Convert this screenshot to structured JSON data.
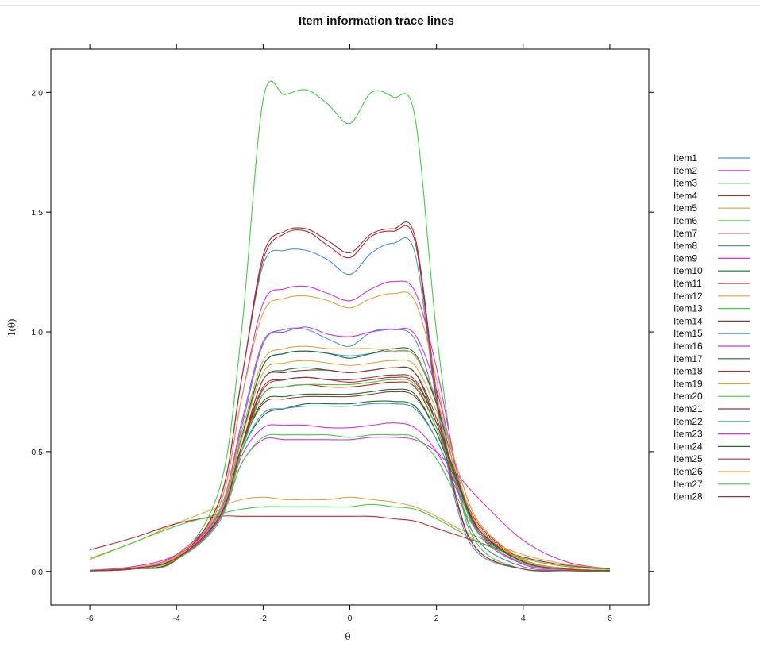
{
  "chart_data": {
    "type": "line",
    "title": "Item information trace lines",
    "xlabel": "θ",
    "ylabel": "I(θ)",
    "xlim": [
      -6.9,
      6.9
    ],
    "ylim": [
      -0.14,
      2.18
    ],
    "x_ticks": [
      -6,
      -4,
      -2,
      0,
      2,
      4,
      6
    ],
    "y_ticks": [
      0.0,
      0.5,
      1.0,
      1.5,
      2.0
    ],
    "x_tick_labels": [
      "-6",
      "-4",
      "-2",
      "0",
      "2",
      "4",
      "6"
    ],
    "y_tick_labels": [
      "0.0",
      "0.5",
      "1.0",
      "1.5",
      "2.0"
    ],
    "grid": false,
    "legend_position": "right",
    "x": [
      -6,
      -5,
      -4,
      -3,
      -2.5,
      -2,
      -1.5,
      -1,
      -0.5,
      0,
      0.5,
      1,
      1.5,
      2,
      2.5,
      3,
      4,
      5,
      6
    ],
    "series": [
      {
        "name": "Item1",
        "color": "#4a90d9",
        "values": [
          0.003,
          0.015,
          0.06,
          0.25,
          0.55,
          0.86,
          0.91,
          0.92,
          0.91,
          0.9,
          0.91,
          0.92,
          0.9,
          0.7,
          0.42,
          0.2,
          0.05,
          0.012,
          0.003
        ]
      },
      {
        "name": "Item2",
        "color": "#d633d6",
        "values": [
          0.005,
          0.02,
          0.07,
          0.22,
          0.45,
          0.55,
          0.55,
          0.55,
          0.55,
          0.55,
          0.56,
          0.56,
          0.55,
          0.5,
          0.4,
          0.3,
          0.13,
          0.04,
          0.01
        ]
      },
      {
        "name": "Item3",
        "color": "#1f6f2f",
        "values": [
          0.003,
          0.012,
          0.05,
          0.22,
          0.52,
          0.8,
          0.84,
          0.85,
          0.84,
          0.83,
          0.84,
          0.85,
          0.83,
          0.62,
          0.36,
          0.16,
          0.04,
          0.01,
          0.003
        ]
      },
      {
        "name": "Item4",
        "color": "#c0282c",
        "values": [
          0.004,
          0.015,
          0.06,
          0.24,
          0.52,
          0.76,
          0.8,
          0.81,
          0.8,
          0.79,
          0.8,
          0.81,
          0.79,
          0.62,
          0.38,
          0.19,
          0.05,
          0.012,
          0.003
        ]
      },
      {
        "name": "Item5",
        "color": "#e6a23c",
        "values": [
          0.055,
          0.12,
          0.2,
          0.27,
          0.3,
          0.31,
          0.3,
          0.3,
          0.3,
          0.31,
          0.3,
          0.29,
          0.27,
          0.23,
          0.18,
          0.14,
          0.07,
          0.03,
          0.01
        ]
      },
      {
        "name": "Item6",
        "color": "#3fcf3f",
        "values": [
          0.002,
          0.01,
          0.05,
          0.35,
          1.0,
          1.97,
          1.99,
          2.01,
          1.95,
          1.87,
          2.0,
          1.98,
          1.9,
          1.0,
          0.35,
          0.1,
          0.01,
          0.003,
          0.001
        ]
      },
      {
        "name": "Item7",
        "color": "#8b3a3a",
        "values": [
          0.002,
          0.01,
          0.05,
          0.3,
          0.8,
          1.32,
          1.42,
          1.43,
          1.38,
          1.33,
          1.41,
          1.43,
          1.4,
          0.75,
          0.28,
          0.08,
          0.01,
          0.003,
          0.001
        ]
      },
      {
        "name": "Item8",
        "color": "#4a90d9",
        "values": [
          0.002,
          0.01,
          0.05,
          0.3,
          0.8,
          1.28,
          1.34,
          1.34,
          1.3,
          1.24,
          1.33,
          1.37,
          1.33,
          0.7,
          0.25,
          0.07,
          0.01,
          0.003,
          0.001
        ]
      },
      {
        "name": "Item9",
        "color": "#d633d6",
        "values": [
          0.003,
          0.015,
          0.07,
          0.28,
          0.72,
          1.12,
          1.18,
          1.19,
          1.16,
          1.13,
          1.18,
          1.21,
          1.17,
          0.85,
          0.4,
          0.15,
          0.03,
          0.01,
          0.003
        ]
      },
      {
        "name": "Item10",
        "color": "#1f6f2f",
        "values": [
          0.003,
          0.012,
          0.05,
          0.22,
          0.5,
          0.65,
          0.68,
          0.7,
          0.7,
          0.7,
          0.71,
          0.71,
          0.69,
          0.55,
          0.34,
          0.17,
          0.04,
          0.012,
          0.003
        ]
      },
      {
        "name": "Item11",
        "color": "#c0282c",
        "values": [
          0.09,
          0.14,
          0.2,
          0.23,
          0.23,
          0.23,
          0.23,
          0.23,
          0.23,
          0.23,
          0.23,
          0.22,
          0.21,
          0.18,
          0.15,
          0.12,
          0.06,
          0.025,
          0.01
        ]
      },
      {
        "name": "Item12",
        "color": "#e6a23c",
        "values": [
          0.002,
          0.012,
          0.06,
          0.28,
          0.72,
          1.08,
          1.14,
          1.15,
          1.13,
          1.1,
          1.14,
          1.16,
          1.13,
          0.8,
          0.35,
          0.12,
          0.02,
          0.005,
          0.002
        ]
      },
      {
        "name": "Item13",
        "color": "#3fcf3f",
        "values": [
          0.003,
          0.015,
          0.06,
          0.23,
          0.45,
          0.56,
          0.57,
          0.57,
          0.57,
          0.56,
          0.57,
          0.57,
          0.56,
          0.47,
          0.3,
          0.16,
          0.04,
          0.01,
          0.003
        ]
      },
      {
        "name": "Item14",
        "color": "#8b3a3a",
        "values": [
          0.003,
          0.015,
          0.06,
          0.24,
          0.52,
          0.7,
          0.72,
          0.73,
          0.73,
          0.73,
          0.74,
          0.75,
          0.73,
          0.58,
          0.36,
          0.18,
          0.045,
          0.012,
          0.003
        ]
      },
      {
        "name": "Item15",
        "color": "#4a90d9",
        "values": [
          0.003,
          0.012,
          0.055,
          0.25,
          0.6,
          0.95,
          1.01,
          1.01,
          0.97,
          0.94,
          1.0,
          1.01,
          0.97,
          0.7,
          0.33,
          0.12,
          0.02,
          0.005,
          0.002
        ]
      },
      {
        "name": "Item16",
        "color": "#d633d6",
        "values": [
          0.003,
          0.014,
          0.06,
          0.26,
          0.62,
          0.96,
          1.0,
          1.02,
          0.99,
          0.98,
          1.0,
          1.01,
          0.99,
          0.76,
          0.4,
          0.16,
          0.03,
          0.008,
          0.002
        ]
      },
      {
        "name": "Item17",
        "color": "#1f6f2f",
        "values": [
          0.003,
          0.013,
          0.055,
          0.24,
          0.56,
          0.86,
          0.91,
          0.92,
          0.91,
          0.89,
          0.91,
          0.93,
          0.91,
          0.7,
          0.38,
          0.17,
          0.04,
          0.01,
          0.003
        ]
      },
      {
        "name": "Item18",
        "color": "#c0282c",
        "values": [
          0.003,
          0.014,
          0.06,
          0.23,
          0.52,
          0.74,
          0.77,
          0.78,
          0.77,
          0.77,
          0.78,
          0.79,
          0.77,
          0.6,
          0.36,
          0.18,
          0.045,
          0.012,
          0.003
        ]
      },
      {
        "name": "Item19",
        "color": "#e6a23c",
        "values": [
          0.004,
          0.016,
          0.065,
          0.26,
          0.58,
          0.88,
          0.93,
          0.94,
          0.93,
          0.93,
          0.93,
          0.92,
          0.9,
          0.72,
          0.42,
          0.2,
          0.05,
          0.013,
          0.003
        ]
      },
      {
        "name": "Item20",
        "color": "#3fcf3f",
        "values": [
          0.05,
          0.12,
          0.19,
          0.24,
          0.26,
          0.27,
          0.27,
          0.27,
          0.27,
          0.27,
          0.28,
          0.27,
          0.26,
          0.22,
          0.17,
          0.12,
          0.055,
          0.02,
          0.008
        ]
      },
      {
        "name": "Item21",
        "color": "#8b3a3a",
        "values": [
          0.003,
          0.012,
          0.05,
          0.22,
          0.52,
          0.77,
          0.8,
          0.81,
          0.8,
          0.8,
          0.81,
          0.82,
          0.8,
          0.62,
          0.37,
          0.17,
          0.04,
          0.01,
          0.003
        ]
      },
      {
        "name": "Item22",
        "color": "#4a90d9",
        "values": [
          0.003,
          0.012,
          0.05,
          0.22,
          0.5,
          0.66,
          0.68,
          0.69,
          0.69,
          0.69,
          0.7,
          0.7,
          0.68,
          0.55,
          0.34,
          0.17,
          0.04,
          0.01,
          0.003
        ]
      },
      {
        "name": "Item23",
        "color": "#d633d6",
        "values": [
          0.003,
          0.012,
          0.05,
          0.22,
          0.48,
          0.6,
          0.61,
          0.61,
          0.6,
          0.6,
          0.61,
          0.62,
          0.6,
          0.5,
          0.33,
          0.17,
          0.045,
          0.012,
          0.003
        ]
      },
      {
        "name": "Item24",
        "color": "#1f6f2f",
        "values": [
          0.003,
          0.013,
          0.055,
          0.23,
          0.52,
          0.71,
          0.73,
          0.74,
          0.74,
          0.74,
          0.75,
          0.76,
          0.74,
          0.58,
          0.35,
          0.17,
          0.04,
          0.01,
          0.003
        ]
      },
      {
        "name": "Item25",
        "color": "#c0282c",
        "values": [
          0.002,
          0.01,
          0.05,
          0.3,
          0.8,
          1.3,
          1.41,
          1.42,
          1.36,
          1.31,
          1.4,
          1.42,
          1.38,
          0.72,
          0.27,
          0.08,
          0.01,
          0.003,
          0.001
        ]
      },
      {
        "name": "Item26",
        "color": "#e6a23c",
        "values": [
          0.003,
          0.014,
          0.06,
          0.24,
          0.55,
          0.83,
          0.87,
          0.88,
          0.87,
          0.86,
          0.87,
          0.88,
          0.86,
          0.67,
          0.39,
          0.18,
          0.045,
          0.012,
          0.003
        ]
      },
      {
        "name": "Item27",
        "color": "#3fcf3f",
        "values": [
          0.003,
          0.012,
          0.05,
          0.21,
          0.5,
          0.74,
          0.77,
          0.78,
          0.78,
          0.78,
          0.79,
          0.8,
          0.78,
          0.6,
          0.35,
          0.15,
          0.035,
          0.009,
          0.002
        ]
      },
      {
        "name": "Item28",
        "color": "#8b3a3a",
        "values": [
          0.003,
          0.013,
          0.055,
          0.23,
          0.52,
          0.8,
          0.83,
          0.84,
          0.84,
          0.83,
          0.84,
          0.85,
          0.83,
          0.64,
          0.37,
          0.17,
          0.04,
          0.01,
          0.003
        ]
      }
    ]
  }
}
